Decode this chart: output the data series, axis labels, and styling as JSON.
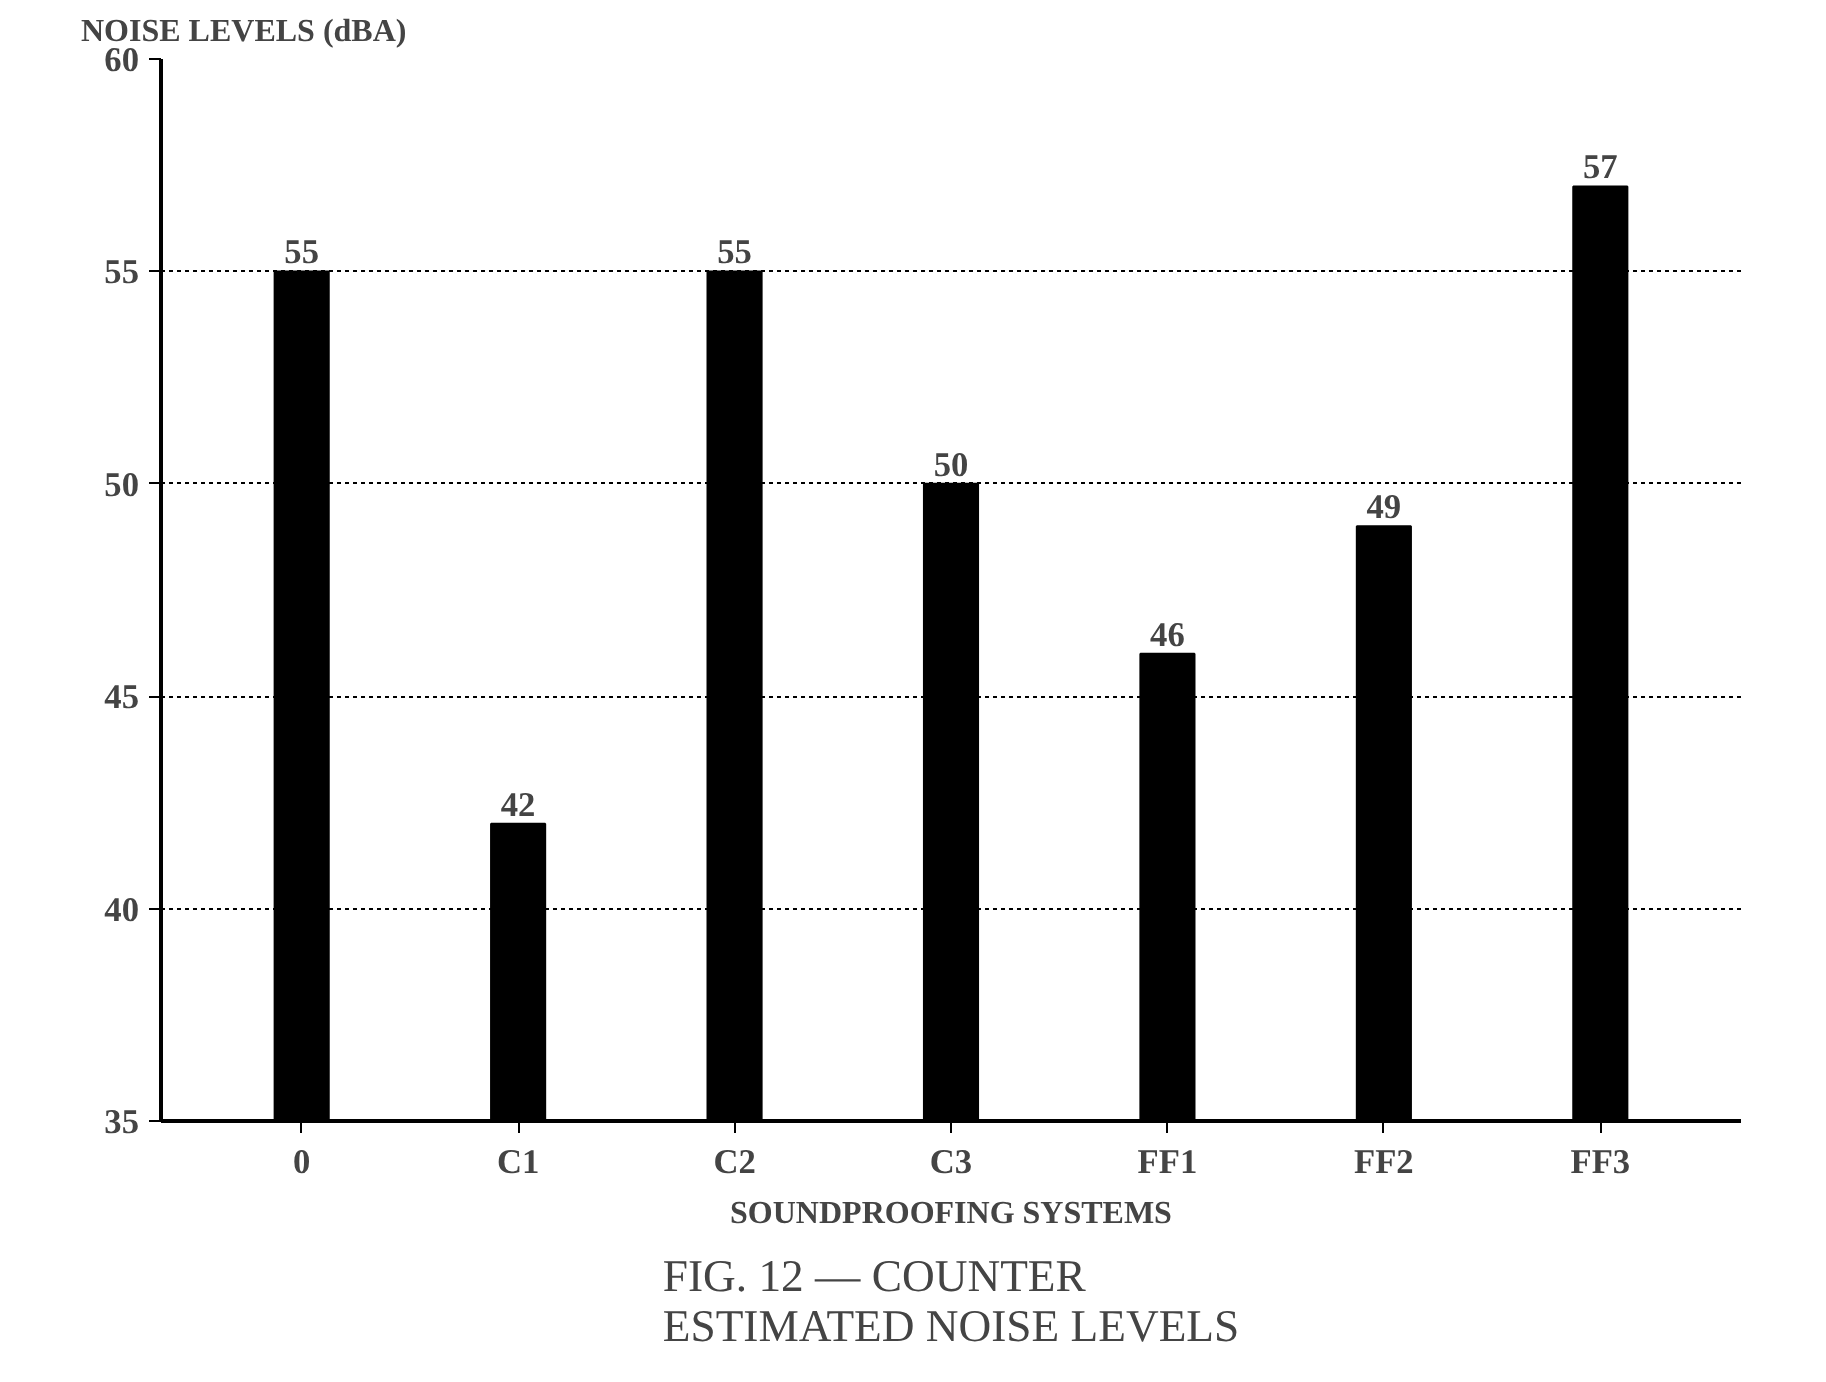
{
  "chart_data": {
    "type": "bar",
    "title": "FIG. 12 — COUNTER ESTIMATED NOISE LEVELS",
    "xlabel": "SOUNDPROOFING SYSTEMS",
    "ylabel": "NOISE LEVELS (dBA)",
    "categories": [
      "0",
      "C1",
      "C2",
      "C3",
      "FF1",
      "FF2",
      "FF3"
    ],
    "values": [
      55,
      42,
      55,
      50,
      46,
      49,
      57
    ],
    "color": "#000000",
    "ylim": [
      35,
      60
    ],
    "yticks": [
      35,
      40,
      45,
      50,
      55,
      60
    ],
    "grid": "y",
    "data_labels": true
  }
}
